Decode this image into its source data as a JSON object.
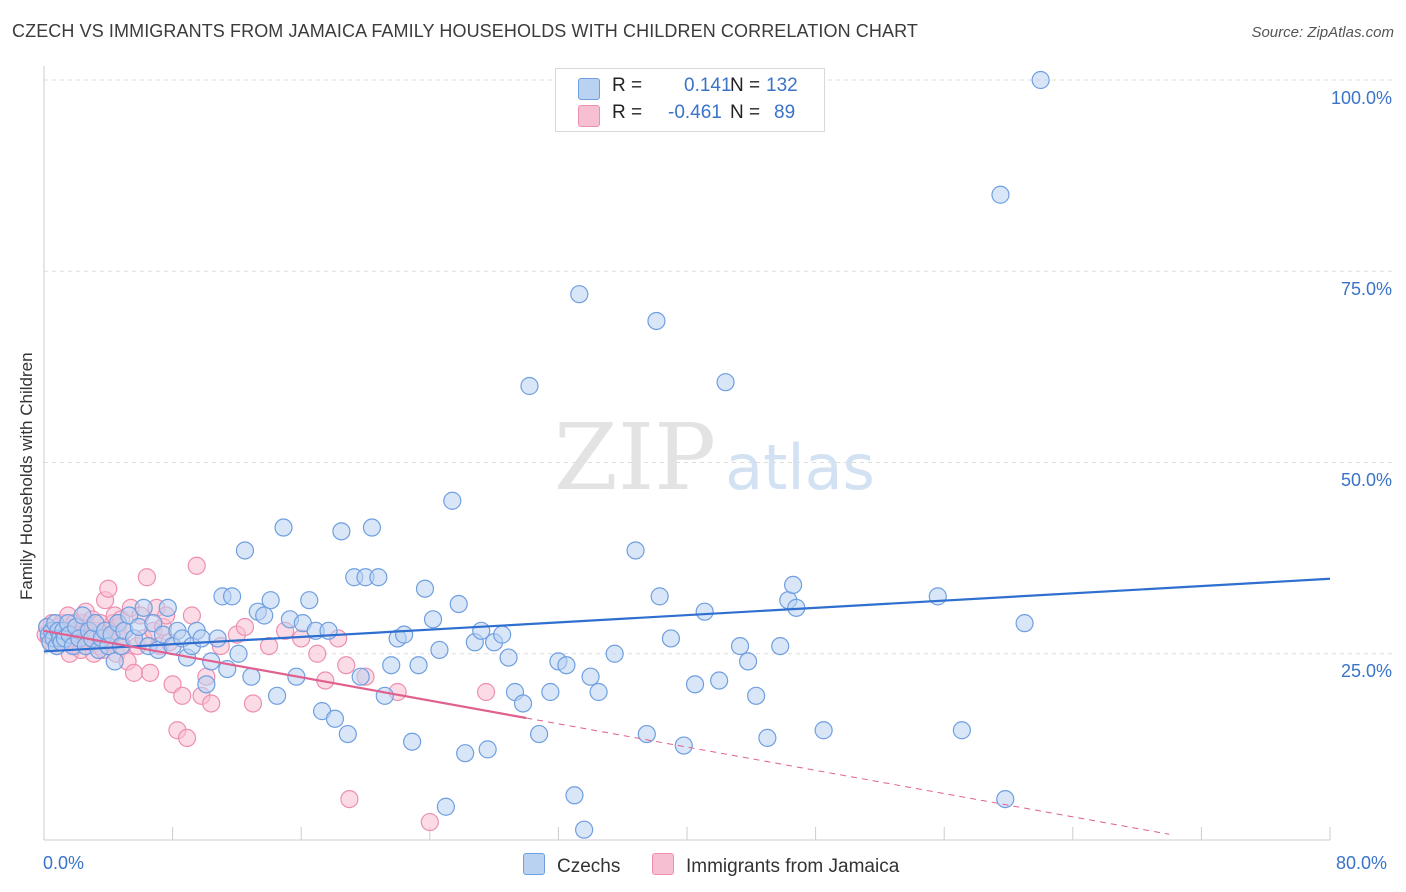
{
  "header": {
    "title": "CZECH VS IMMIGRANTS FROM JAMAICA FAMILY HOUSEHOLDS WITH CHILDREN CORRELATION CHART",
    "source": "Source: ZipAtlas.com"
  },
  "watermark": {
    "part1": "ZIP",
    "part2": "atlas"
  },
  "legend": {
    "czech": {
      "r_label": "R =",
      "r_value": "0.141",
      "n_label": "N =",
      "n_value": "132"
    },
    "jamaica": {
      "r_label": "R =",
      "r_value": "-0.461",
      "n_label": "N =",
      "n_value": "89"
    }
  },
  "bottom_legend": {
    "czech": "Czechs",
    "jamaica": "Immigrants from Jamaica"
  },
  "colors": {
    "czech_fill": "#b9d2f2",
    "czech_stroke": "#6f9fe0",
    "czech_line": "#2f6fcf",
    "jamaica_fill": "#f7c0d2",
    "jamaica_stroke": "#ee8fb0",
    "jamaica_line": "#e0608f",
    "tick_text": "#3a73c8",
    "grid": "#dddddd"
  },
  "chart_data": {
    "type": "scatter",
    "title": "CZECH VS IMMIGRANTS FROM JAMAICA FAMILY HOUSEHOLDS WITH CHILDREN CORRELATION CHART",
    "xlabel": "",
    "ylabel": "Family Households with Children",
    "xlim": [
      0,
      80
    ],
    "ylim": [
      0,
      103
    ],
    "x_tick_labels": [
      "0.0%",
      "80.0%"
    ],
    "y_ticks": [
      25,
      50,
      75,
      100
    ],
    "y_tick_labels": [
      "25.0%",
      "50.0%",
      "75.0%",
      "100.0%"
    ],
    "grid": true,
    "series": [
      {
        "name": "Czechs",
        "r": 0.141,
        "n": 132,
        "trend": {
          "x": [
            0,
            80
          ],
          "y": [
            25.3,
            34.8
          ],
          "dashed_to": null
        },
        "points": [
          [
            0.2,
            28.5
          ],
          [
            0.3,
            27.5
          ],
          [
            0.4,
            26.5
          ],
          [
            0.5,
            28
          ],
          [
            0.6,
            27
          ],
          [
            0.7,
            29
          ],
          [
            0.8,
            26
          ],
          [
            0.9,
            28
          ],
          [
            1.0,
            27
          ],
          [
            1.1,
            26.5
          ],
          [
            1.2,
            28
          ],
          [
            1.3,
            27
          ],
          [
            1.5,
            29
          ],
          [
            1.6,
            27.5
          ],
          [
            1.8,
            26
          ],
          [
            2.0,
            28.5
          ],
          [
            2.2,
            27
          ],
          [
            2.4,
            30
          ],
          [
            2.6,
            26
          ],
          [
            2.8,
            28
          ],
          [
            3.0,
            27
          ],
          [
            3.2,
            29
          ],
          [
            3.4,
            25.5
          ],
          [
            3.6,
            27
          ],
          [
            3.8,
            28
          ],
          [
            4.0,
            26
          ],
          [
            4.2,
            27.5
          ],
          [
            4.4,
            24
          ],
          [
            4.6,
            29
          ],
          [
            4.8,
            26
          ],
          [
            5.0,
            28
          ],
          [
            5.3,
            30
          ],
          [
            5.6,
            27
          ],
          [
            5.9,
            28.5
          ],
          [
            6.2,
            31
          ],
          [
            6.5,
            26
          ],
          [
            6.8,
            29
          ],
          [
            7.1,
            25.5
          ],
          [
            7.4,
            27.5
          ],
          [
            7.7,
            31
          ],
          [
            8.0,
            26
          ],
          [
            8.3,
            28
          ],
          [
            8.6,
            27
          ],
          [
            8.9,
            24.5
          ],
          [
            9.2,
            26
          ],
          [
            9.5,
            28
          ],
          [
            9.8,
            27
          ],
          [
            10.1,
            21
          ],
          [
            10.4,
            24
          ],
          [
            10.8,
            27
          ],
          [
            11.1,
            32.5
          ],
          [
            11.4,
            23
          ],
          [
            11.7,
            32.5
          ],
          [
            12.1,
            25
          ],
          [
            12.5,
            38.5
          ],
          [
            12.9,
            22
          ],
          [
            13.3,
            30.5
          ],
          [
            13.7,
            30
          ],
          [
            14.1,
            32
          ],
          [
            14.5,
            19.5
          ],
          [
            14.9,
            41.5
          ],
          [
            15.3,
            29.5
          ],
          [
            15.7,
            22
          ],
          [
            16.1,
            29
          ],
          [
            16.5,
            32
          ],
          [
            16.9,
            28
          ],
          [
            17.3,
            17.5
          ],
          [
            17.7,
            28
          ],
          [
            18.1,
            16.5
          ],
          [
            18.5,
            41
          ],
          [
            18.9,
            14.5
          ],
          [
            19.3,
            35
          ],
          [
            19.7,
            22
          ],
          [
            20.0,
            35
          ],
          [
            20.4,
            41.5
          ],
          [
            20.8,
            35
          ],
          [
            21.2,
            19.5
          ],
          [
            21.6,
            23.5
          ],
          [
            22.0,
            27
          ],
          [
            22.4,
            27.5
          ],
          [
            22.9,
            13.5
          ],
          [
            23.3,
            23.5
          ],
          [
            23.7,
            33.5
          ],
          [
            24.2,
            29.5
          ],
          [
            24.6,
            25.5
          ],
          [
            25.0,
            5
          ],
          [
            25.4,
            45
          ],
          [
            25.8,
            31.5
          ],
          [
            26.2,
            12
          ],
          [
            26.8,
            26.5
          ],
          [
            27.2,
            28
          ],
          [
            27.6,
            12.5
          ],
          [
            28.0,
            26.5
          ],
          [
            28.5,
            27.5
          ],
          [
            28.9,
            24.5
          ],
          [
            29.3,
            20
          ],
          [
            29.8,
            18.5
          ],
          [
            30.2,
            60
          ],
          [
            30.8,
            14.5
          ],
          [
            31.5,
            20
          ],
          [
            32.0,
            24
          ],
          [
            32.5,
            23.5
          ],
          [
            33.0,
            6.5
          ],
          [
            33.3,
            72
          ],
          [
            33.6,
            2
          ],
          [
            34.0,
            22
          ],
          [
            34.5,
            20
          ],
          [
            35.5,
            25
          ],
          [
            36.8,
            38.5
          ],
          [
            37.5,
            14.5
          ],
          [
            38.1,
            68.5
          ],
          [
            38.3,
            32.5
          ],
          [
            39.0,
            27
          ],
          [
            39.8,
            13
          ],
          [
            40.5,
            21
          ],
          [
            41.1,
            30.5
          ],
          [
            42.0,
            21.5
          ],
          [
            42.4,
            60.5
          ],
          [
            43.3,
            26
          ],
          [
            43.8,
            24
          ],
          [
            44.3,
            19.5
          ],
          [
            45.0,
            14
          ],
          [
            45.8,
            26
          ],
          [
            46.3,
            32
          ],
          [
            46.6,
            34
          ],
          [
            46.8,
            31
          ],
          [
            48.5,
            15
          ],
          [
            55.6,
            32.5
          ],
          [
            57.1,
            15
          ],
          [
            59.5,
            85
          ],
          [
            59.8,
            6
          ],
          [
            61.0,
            29
          ],
          [
            62.0,
            100
          ]
        ]
      },
      {
        "name": "Immigrants from Jamaica",
        "r": -0.461,
        "n": 89,
        "trend": {
          "x": [
            0,
            30.0
          ],
          "y": [
            28.0,
            16.6
          ],
          "dashed_to": [
            70,
            1.4
          ]
        },
        "points": [
          [
            0.1,
            27.5
          ],
          [
            0.2,
            28.5
          ],
          [
            0.3,
            27
          ],
          [
            0.4,
            26.5
          ],
          [
            0.5,
            29
          ],
          [
            0.6,
            28
          ],
          [
            0.7,
            27
          ],
          [
            0.8,
            26
          ],
          [
            0.9,
            28.5
          ],
          [
            1.0,
            27
          ],
          [
            1.1,
            29
          ],
          [
            1.2,
            26.5
          ],
          [
            1.3,
            28
          ],
          [
            1.4,
            27.5
          ],
          [
            1.5,
            30
          ],
          [
            1.6,
            25
          ],
          [
            1.7,
            28
          ],
          [
            1.8,
            27
          ],
          [
            1.9,
            29
          ],
          [
            2.0,
            26
          ],
          [
            2.1,
            28
          ],
          [
            2.2,
            27.5
          ],
          [
            2.3,
            25.5
          ],
          [
            2.4,
            29
          ],
          [
            2.5,
            27
          ],
          [
            2.6,
            30.5
          ],
          [
            2.7,
            28
          ],
          [
            2.8,
            26.5
          ],
          [
            2.9,
            27
          ],
          [
            3.0,
            29.5
          ],
          [
            3.1,
            25
          ],
          [
            3.2,
            28
          ],
          [
            3.3,
            27
          ],
          [
            3.4,
            26
          ],
          [
            3.5,
            29
          ],
          [
            3.6,
            27.5
          ],
          [
            3.7,
            25.5
          ],
          [
            3.8,
            32
          ],
          [
            3.9,
            28
          ],
          [
            4.0,
            33.5
          ],
          [
            4.1,
            26.5
          ],
          [
            4.2,
            27
          ],
          [
            4.3,
            29
          ],
          [
            4.4,
            30
          ],
          [
            4.5,
            25
          ],
          [
            4.6,
            28.5
          ],
          [
            4.7,
            27
          ],
          [
            4.8,
            29.5
          ],
          [
            4.9,
            26
          ],
          [
            5.0,
            28
          ],
          [
            5.2,
            24
          ],
          [
            5.4,
            31
          ],
          [
            5.6,
            22.5
          ],
          [
            5.8,
            26
          ],
          [
            6.0,
            30
          ],
          [
            6.2,
            27
          ],
          [
            6.4,
            35
          ],
          [
            6.6,
            22.5
          ],
          [
            6.8,
            28
          ],
          [
            7.0,
            31
          ],
          [
            7.2,
            26
          ],
          [
            7.4,
            28.5
          ],
          [
            7.6,
            30
          ],
          [
            7.8,
            26.5
          ],
          [
            8.0,
            21
          ],
          [
            8.3,
            15
          ],
          [
            8.6,
            19.5
          ],
          [
            8.9,
            14
          ],
          [
            9.2,
            30
          ],
          [
            9.5,
            36.5
          ],
          [
            9.8,
            19.5
          ],
          [
            10.1,
            22
          ],
          [
            10.4,
            18.5
          ],
          [
            11.0,
            26
          ],
          [
            12.0,
            27.5
          ],
          [
            12.5,
            28.5
          ],
          [
            13.0,
            18.5
          ],
          [
            14.0,
            26
          ],
          [
            15.0,
            28
          ],
          [
            16.0,
            27
          ],
          [
            17.0,
            25
          ],
          [
            17.5,
            21.5
          ],
          [
            18.3,
            27
          ],
          [
            18.8,
            23.5
          ],
          [
            19.0,
            6
          ],
          [
            20.0,
            22
          ],
          [
            22.0,
            20
          ],
          [
            24.0,
            3
          ],
          [
            27.5,
            20
          ]
        ]
      }
    ]
  },
  "axes": {
    "ylabel": "Family Households with Children",
    "x_start": "0.0%",
    "x_end": "80.0%"
  }
}
